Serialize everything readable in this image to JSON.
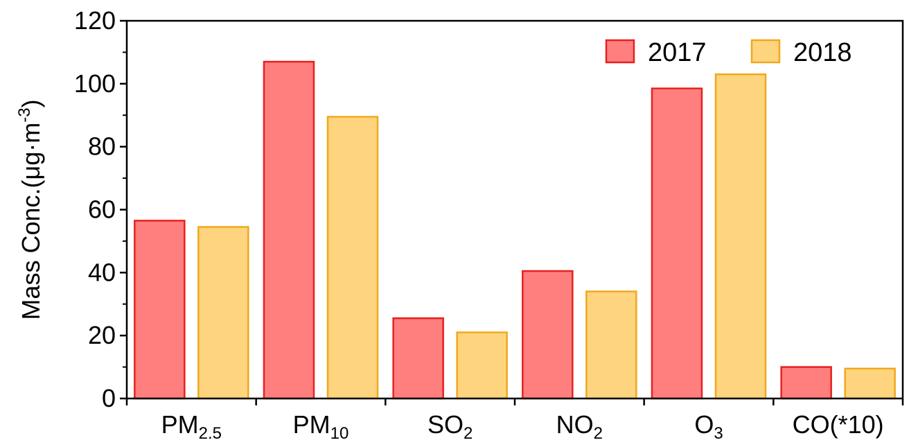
{
  "chart_data": {
    "type": "bar",
    "categories": [
      {
        "main": "PM",
        "sub": "2.5",
        "suffix": ""
      },
      {
        "main": "PM",
        "sub": "10",
        "suffix": ""
      },
      {
        "main": "SO",
        "sub": "2",
        "suffix": ""
      },
      {
        "main": "NO",
        "sub": "2",
        "suffix": ""
      },
      {
        "main": "O",
        "sub": "3",
        "suffix": ""
      },
      {
        "main": "CO(*10)",
        "sub": "",
        "suffix": ""
      }
    ],
    "series": [
      {
        "name": "2017",
        "values": [
          56.5,
          107,
          25.5,
          40.5,
          98.5,
          10
        ],
        "fill": "#ff7f7f",
        "stroke": "#e8201e"
      },
      {
        "name": "2018",
        "values": [
          54.5,
          89.5,
          21,
          34,
          103,
          9.5
        ],
        "fill": "#ffd47f",
        "stroke": "#f0a81c"
      }
    ],
    "ylabel": {
      "main": "Mass Conc.(μg·m",
      "sup": "-3",
      "close": ")"
    },
    "ylim": [
      0,
      120
    ],
    "yticks": [
      0,
      20,
      40,
      60,
      80,
      100,
      120
    ],
    "legend_position": "top-right",
    "grid": false
  }
}
